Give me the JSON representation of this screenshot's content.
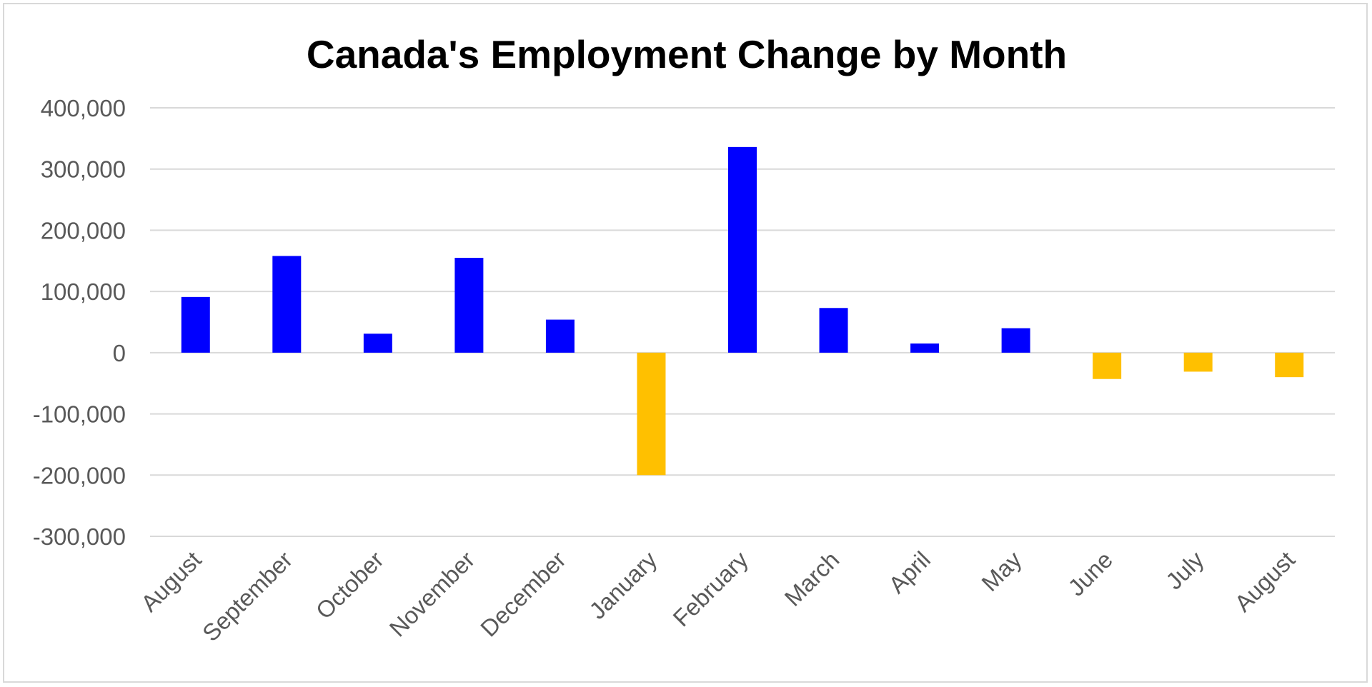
{
  "chart_data": {
    "type": "bar",
    "title": "Canada's Employment Change by Month",
    "xlabel": "",
    "ylabel": "",
    "categories": [
      "August",
      "September",
      "October",
      "November",
      "December",
      "January",
      "February",
      "March",
      "April",
      "May",
      "June",
      "July",
      "August"
    ],
    "values": [
      91000,
      158000,
      31000,
      155000,
      54000,
      -200000,
      336000,
      73000,
      15000,
      40000,
      -43000,
      -31000,
      -40000
    ],
    "ylim": [
      -300000,
      400000
    ],
    "yticks": [
      400000,
      300000,
      200000,
      100000,
      0,
      -100000,
      -200000,
      -300000
    ],
    "ytick_labels": [
      "400,000",
      "300,000",
      "200,000",
      "100,000",
      "0",
      "-100,000",
      "-200,000",
      "-300,000"
    ],
    "grid": true,
    "legend": false,
    "colors": {
      "positive": "#0000ff",
      "negative": "#ffc000",
      "gridline": "#d9d9d9",
      "tick_text": "#595959"
    }
  }
}
